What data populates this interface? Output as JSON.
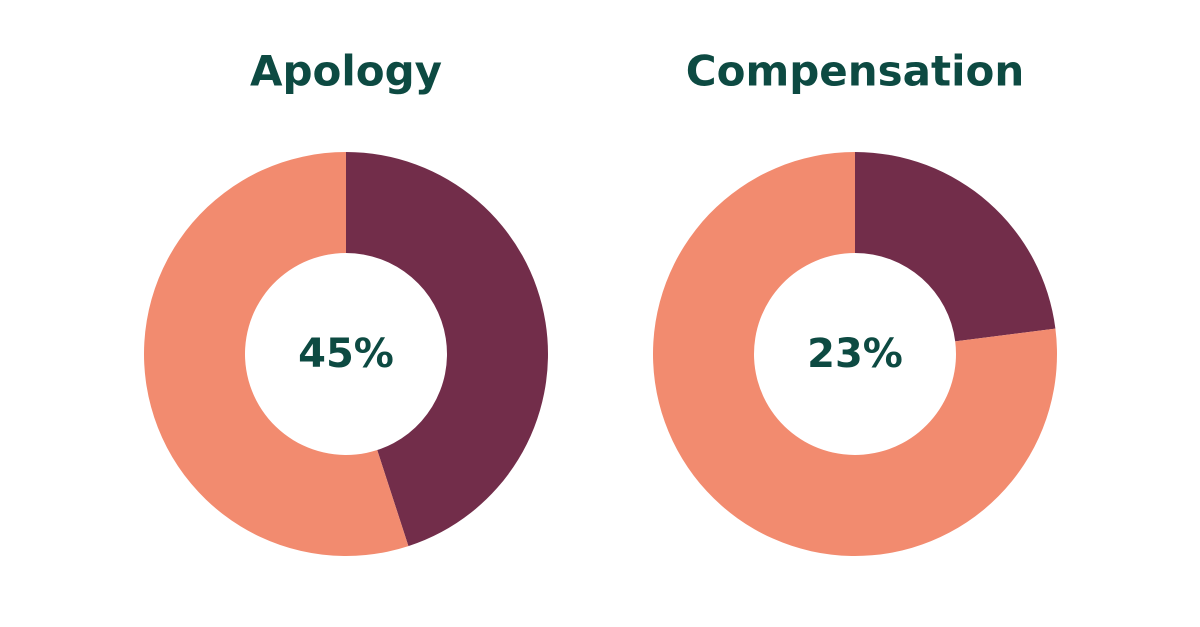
{
  "chart_data": [
    {
      "type": "donut",
      "title": "Apology",
      "values": [
        45,
        55
      ],
      "value_labels": [
        "45%",
        null
      ],
      "colors": [
        "#722d4a",
        "#f28b6f"
      ]
    },
    {
      "type": "donut",
      "title": "Compensation",
      "values": [
        23,
        77
      ],
      "value_labels": [
        "23%",
        null
      ],
      "colors": [
        "#722d4a",
        "#f28b6f"
      ]
    }
  ]
}
